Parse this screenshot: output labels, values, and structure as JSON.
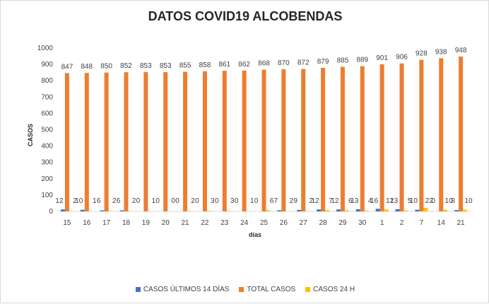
{
  "chart_data": {
    "type": "bar",
    "title": "DATOS COVID19 ALCOBENDAS",
    "xlabel": "días",
    "ylabel": "CASOS",
    "ylim": [
      0,
      1000
    ],
    "yticks": [
      0,
      100,
      200,
      300,
      400,
      500,
      600,
      700,
      800,
      900,
      1000
    ],
    "grid": false,
    "legend": "bottom",
    "categories": [
      "15",
      "16",
      "17",
      "18",
      "19",
      "20",
      "21",
      "22",
      "23",
      "24",
      "25",
      "26",
      "27",
      "28",
      "29",
      "30",
      "1",
      "2",
      "7",
      "14",
      "21"
    ],
    "series": [
      {
        "name": "CASOS ÚLTIMOS 14 DÍAS",
        "color": "#4472c4",
        "values": [
          12,
          10,
          6,
          6,
          0,
          0,
          0,
          0,
          0,
          0,
          0,
          7,
          9,
          12,
          12,
          13,
          16,
          13,
          10,
          0,
          8
        ]
      },
      {
        "name": "TOTAL CASOS",
        "color": "#ed7d31",
        "values": [
          847,
          848,
          850,
          852,
          853,
          853,
          855,
          858,
          861,
          862,
          868,
          870,
          872,
          879,
          885,
          889,
          901,
          906,
          928,
          938,
          948
        ]
      },
      {
        "name": "CASOS 24 H",
        "color": "#ffc000",
        "values": [
          2,
          1,
          2,
          2,
          1,
          0,
          2,
          3,
          3,
          1,
          6,
          2,
          2,
          7,
          6,
          4,
          12,
          5,
          22,
          10,
          10
        ]
      }
    ]
  }
}
